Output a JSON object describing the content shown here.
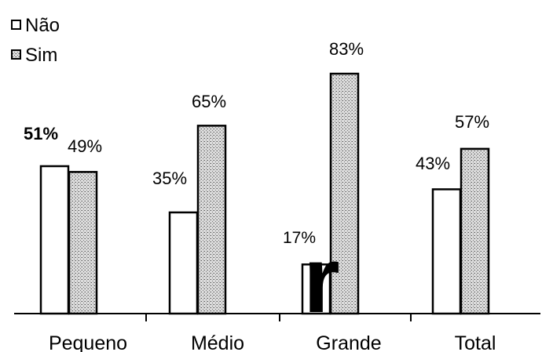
{
  "chart_data": {
    "type": "bar",
    "categories": [
      "Pequeno",
      "Médio",
      "Grande",
      "Total"
    ],
    "series": [
      {
        "name": "Não",
        "values": [
          51,
          35,
          17,
          43
        ],
        "labels": [
          "51%",
          "35%",
          "17%",
          "43%"
        ]
      },
      {
        "name": "Sim",
        "values": [
          49,
          65,
          83,
          57
        ],
        "labels": [
          "49%",
          "65%",
          "83%",
          "57%"
        ]
      }
    ],
    "ylim": [
      0,
      100
    ],
    "grid": false,
    "legend": "top-left",
    "colors": {
      "nao": "#ffffff",
      "sim": "#c8c8c8",
      "outline": "#000000"
    }
  }
}
